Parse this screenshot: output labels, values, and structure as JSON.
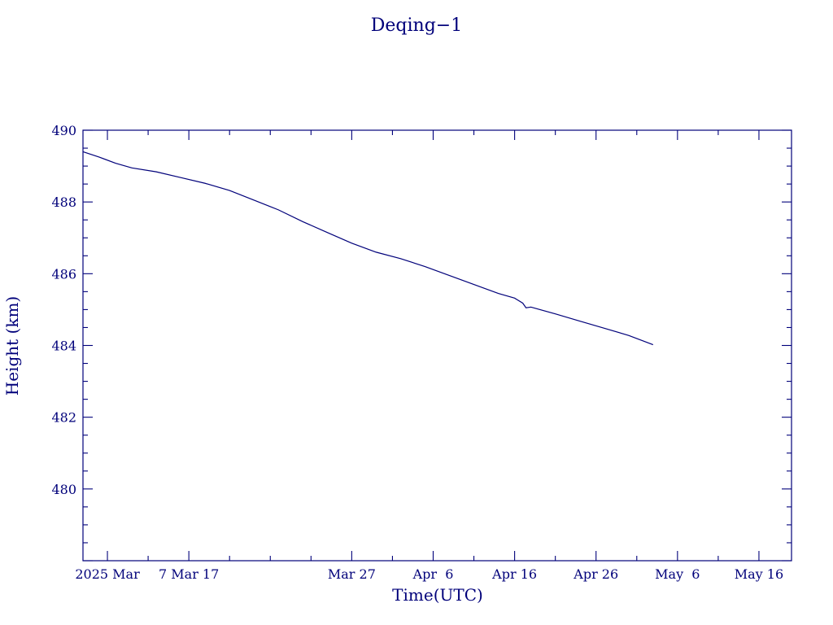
{
  "chart_data": {
    "type": "line",
    "title": "Deqing−1",
    "xlabel": "Time(UTC)",
    "ylabel": "Height (km)",
    "xlim": [
      "2025-02-22",
      "2025-05-20"
    ],
    "ylim": [
      478,
      490
    ],
    "x_ticks": [
      {
        "date": "2025-02-25",
        "label": "2025 Mar"
      },
      {
        "date": "2025-03-07",
        "label": "7 Mar 17"
      },
      {
        "date": "2025-03-27",
        "label": "Mar 27"
      },
      {
        "date": "2025-04-06",
        "label": "Apr  6"
      },
      {
        "date": "2025-04-16",
        "label": "Apr 16"
      },
      {
        "date": "2025-04-26",
        "label": "Apr 26"
      },
      {
        "date": "2025-05-06",
        "label": "May  6"
      },
      {
        "date": "2025-05-16",
        "label": "May 16"
      }
    ],
    "y_ticks": [
      480,
      482,
      484,
      486,
      488,
      490
    ],
    "series": [
      {
        "points": [
          [
            "2025-02-22",
            489.4
          ],
          [
            "2025-02-24",
            489.25
          ],
          [
            "2025-02-26",
            489.08
          ],
          [
            "2025-02-28",
            488.95
          ],
          [
            "2025-03-03",
            488.84
          ],
          [
            "2025-03-06",
            488.68
          ],
          [
            "2025-03-09",
            488.52
          ],
          [
            "2025-03-12",
            488.32
          ],
          [
            "2025-03-15",
            488.05
          ],
          [
            "2025-03-18",
            487.78
          ],
          [
            "2025-03-21",
            487.45
          ],
          [
            "2025-03-24",
            487.15
          ],
          [
            "2025-03-27",
            486.85
          ],
          [
            "2025-03-30",
            486.6
          ],
          [
            "2025-04-02",
            486.42
          ],
          [
            "2025-04-05",
            486.2
          ],
          [
            "2025-04-08",
            485.95
          ],
          [
            "2025-04-11",
            485.7
          ],
          [
            "2025-04-14",
            485.45
          ],
          [
            "2025-04-16",
            485.32
          ],
          [
            "2025-04-17",
            485.18
          ],
          [
            "2025-04-17.4",
            485.05
          ],
          [
            "2025-04-18",
            485.07
          ],
          [
            "2025-04-21",
            484.88
          ],
          [
            "2025-04-24",
            484.68
          ],
          [
            "2025-04-27",
            484.48
          ],
          [
            "2025-04-30",
            484.28
          ],
          [
            "2025-05-03",
            484.02
          ]
        ]
      }
    ],
    "grid": false,
    "legend": "none"
  }
}
